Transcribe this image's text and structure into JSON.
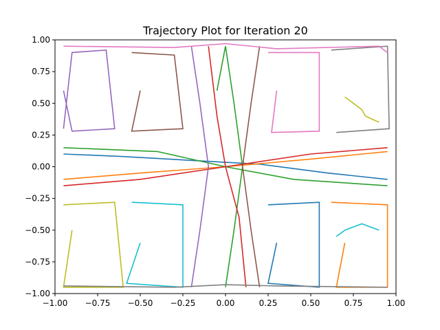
{
  "chart_data": {
    "type": "line",
    "title": "Trajectory Plot for Iteration 20",
    "xlabel": "",
    "ylabel": "",
    "xlim": [
      -1.0,
      1.0
    ],
    "ylim": [
      -1.0,
      1.0
    ],
    "x_ticks": [
      -1.0,
      -0.75,
      -0.5,
      -0.25,
      0.0,
      0.25,
      0.5,
      0.75,
      1.0
    ],
    "y_ticks": [
      -1.0,
      -0.75,
      -0.5,
      -0.25,
      0.0,
      0.25,
      0.5,
      0.75,
      1.0
    ],
    "x_tick_labels": [
      "−1.00",
      "−0.75",
      "−0.50",
      "−0.25",
      "0.00",
      "0.25",
      "0.50",
      "0.75",
      "1.00"
    ],
    "y_tick_labels": [
      "−1.00",
      "−0.75",
      "−0.50",
      "−0.25",
      "0.00",
      "0.25",
      "0.50",
      "0.75",
      "1.00"
    ],
    "grid": false,
    "legend": "none",
    "series_colors": [
      "#1f77b4",
      "#ff7f0e",
      "#2ca02c",
      "#d62728",
      "#9467bd",
      "#8c564b",
      "#e377c2",
      "#7f7f7f",
      "#bcbd22",
      "#17becf"
    ],
    "series": [
      {
        "x": [
          -0.95,
          -0.6,
          -0.2,
          0.2,
          0.6,
          0.95
        ],
        "y": [
          0.1,
          0.08,
          0.05,
          0.02,
          -0.05,
          -0.1
        ]
      },
      {
        "x": [
          -0.95,
          -0.5,
          0.0,
          0.5,
          0.95
        ],
        "y": [
          -0.1,
          -0.05,
          0.0,
          0.06,
          0.12
        ]
      },
      {
        "x": [
          0.0,
          0.05,
          0.1,
          0.05,
          0.0,
          -0.05
        ],
        "y": [
          -0.95,
          -0.5,
          0.0,
          0.5,
          0.95,
          0.6
        ]
      },
      {
        "x": [
          -0.1,
          -0.05,
          0.0,
          0.08,
          0.12
        ],
        "y": [
          0.95,
          0.4,
          0.0,
          -0.4,
          -0.95
        ]
      },
      {
        "x": [
          -0.95,
          -0.9,
          -0.7,
          -0.65,
          -0.9,
          -0.95
        ],
        "y": [
          0.3,
          0.9,
          0.92,
          0.3,
          0.28,
          0.6
        ]
      },
      {
        "x": [
          -0.55,
          -0.3,
          -0.25,
          -0.55,
          -0.5
        ],
        "y": [
          0.9,
          0.88,
          0.3,
          0.28,
          0.6
        ]
      },
      {
        "x": [
          0.25,
          0.55,
          0.55,
          0.27,
          0.3
        ],
        "y": [
          0.9,
          0.9,
          0.28,
          0.27,
          0.6
        ]
      },
      {
        "x": [
          0.62,
          0.95,
          0.96,
          0.65
        ],
        "y": [
          0.92,
          0.95,
          0.3,
          0.27
        ]
      },
      {
        "x": [
          -0.95,
          -0.65,
          -0.6,
          -0.95,
          -0.9
        ],
        "y": [
          -0.3,
          -0.28,
          -0.95,
          -0.95,
          -0.5
        ]
      },
      {
        "x": [
          -0.55,
          -0.25,
          -0.25,
          -0.58,
          -0.5
        ],
        "y": [
          -0.28,
          -0.3,
          -0.95,
          -0.92,
          -0.6
        ]
      },
      {
        "x": [
          0.25,
          0.55,
          0.55,
          0.25,
          0.3
        ],
        "y": [
          -0.3,
          -0.28,
          -0.95,
          -0.92,
          -0.6
        ]
      },
      {
        "x": [
          0.62,
          0.95,
          0.95,
          0.65,
          0.7
        ],
        "y": [
          -0.28,
          -0.3,
          -0.95,
          -0.95,
          -0.6
        ]
      },
      {
        "x": [
          -0.95,
          -0.4,
          0.0,
          0.4,
          0.95
        ],
        "y": [
          0.15,
          0.12,
          0.0,
          -0.1,
          -0.15
        ]
      },
      {
        "x": [
          -0.95,
          -0.5,
          0.0,
          0.5,
          0.95
        ],
        "y": [
          -0.15,
          -0.1,
          0.0,
          0.1,
          0.15
        ]
      },
      {
        "x": [
          -0.2,
          -0.15,
          -0.1,
          -0.15,
          -0.2
        ],
        "y": [
          0.95,
          0.5,
          0.0,
          -0.5,
          -0.95
        ]
      },
      {
        "x": [
          0.2,
          0.15,
          0.1,
          0.15,
          0.2
        ],
        "y": [
          0.95,
          0.5,
          0.0,
          -0.5,
          -0.95
        ]
      },
      {
        "x": [
          -0.95,
          -0.3,
          0.0,
          0.3,
          0.9,
          0.95
        ],
        "y": [
          0.95,
          0.94,
          0.97,
          0.93,
          0.95,
          0.9
        ]
      },
      {
        "x": [
          -0.95,
          -0.3,
          0.0,
          0.3,
          0.95
        ],
        "y": [
          -0.94,
          -0.95,
          -0.93,
          -0.94,
          -0.95
        ]
      },
      {
        "x": [
          0.7,
          0.75,
          0.8,
          0.82,
          0.9
        ],
        "y": [
          0.55,
          0.5,
          0.45,
          0.4,
          0.35
        ]
      },
      {
        "x": [
          0.65,
          0.7,
          0.8,
          0.9
        ],
        "y": [
          -0.55,
          -0.5,
          -0.45,
          -0.5
        ]
      }
    ]
  }
}
